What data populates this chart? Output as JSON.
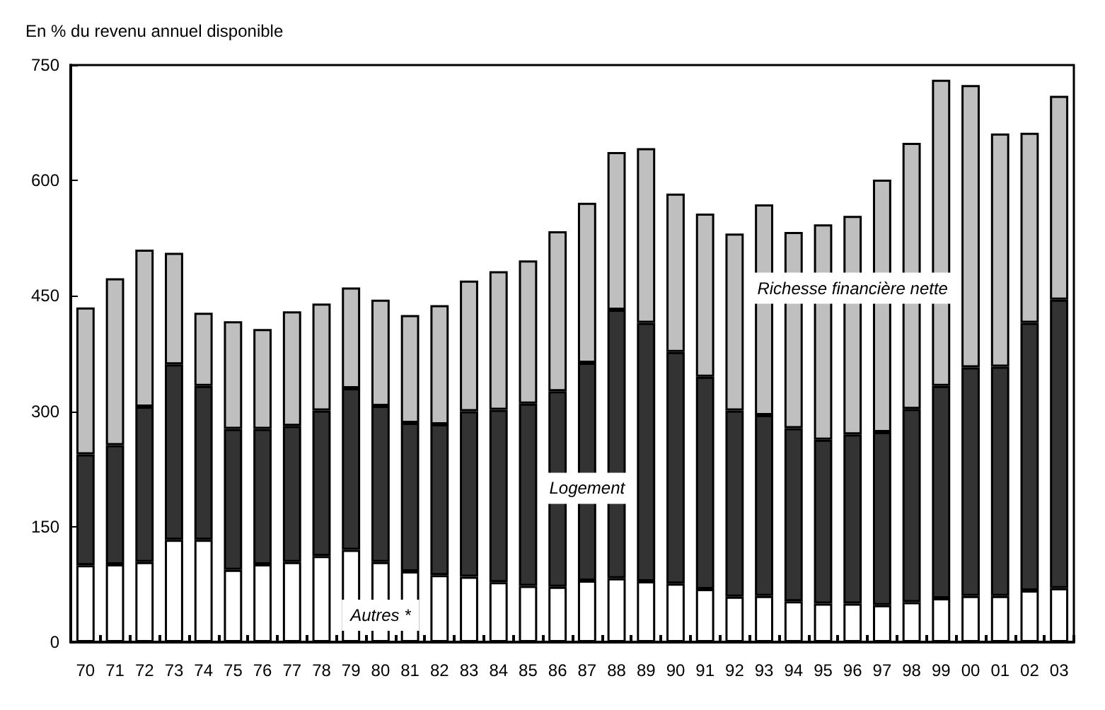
{
  "chart_data": {
    "type": "bar",
    "stacked": true,
    "ylabel": "En % du revenu annuel disponible",
    "categories": [
      "70",
      "71",
      "72",
      "73",
      "74",
      "75",
      "76",
      "77",
      "78",
      "79",
      "80",
      "81",
      "82",
      "83",
      "84",
      "85",
      "86",
      "87",
      "88",
      "89",
      "90",
      "91",
      "92",
      "93",
      "94",
      "95",
      "96",
      "97",
      "98",
      "99",
      "00",
      "01",
      "02",
      "03"
    ],
    "series": [
      {
        "color": "#ffffff",
        "values": [
          100,
          101,
          104,
          133,
          133,
          94,
          101,
          104,
          112,
          120,
          104,
          92,
          87,
          85,
          78,
          73,
          72,
          80,
          83,
          79,
          76,
          69,
          59,
          60,
          53,
          50,
          50,
          48,
          52,
          57,
          60,
          60,
          67,
          70
        ]
      },
      {
        "color": "#333333",
        "values": [
          144,
          155,
          202,
          228,
          200,
          183,
          176,
          177,
          189,
          210,
          203,
          193,
          196,
          215,
          224,
          237,
          254,
          283,
          349,
          336,
          301,
          276,
          242,
          235,
          225,
          213,
          220,
          225,
          251,
          276,
          297,
          298,
          348,
          375
        ]
      },
      {
        "color": "#bfbfbf",
        "values": [
          191,
          217,
          204,
          145,
          95,
          140,
          130,
          149,
          139,
          131,
          138,
          140,
          155,
          170,
          180,
          186,
          208,
          208,
          205,
          227,
          206,
          212,
          230,
          274,
          255,
          280,
          284,
          328,
          346,
          398,
          367,
          303,
          247,
          265
        ]
      }
    ],
    "ylim": [
      0,
      750
    ],
    "yticks": [
      0,
      150,
      300,
      450,
      600,
      750
    ],
    "grid": false,
    "annotations": [
      {
        "text": "Autres *",
        "x": "80",
        "y": 35
      },
      {
        "text": "Logement",
        "x": "87",
        "y": 200
      },
      {
        "text": "Richesse financière nette",
        "x": "96",
        "y": 460
      }
    ]
  }
}
